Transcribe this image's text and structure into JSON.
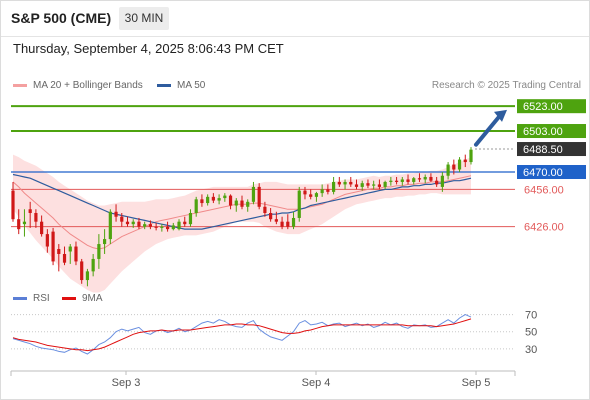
{
  "header": {
    "symbol": "S&P 500 (CME)",
    "timeframe": "30 MIN"
  },
  "datetime": "Thursday, September 4, 2025 8:06:43 PM CET",
  "copyright": "Research © 2025 Trading Central",
  "legend": {
    "price": [
      {
        "label": "MA 20 + Bollinger Bands",
        "color": "#f4a0a0"
      },
      {
        "label": "MA 50",
        "color": "#2e5c9e"
      }
    ],
    "rsi": [
      {
        "label": "RSI",
        "color": "#5b7fd6"
      },
      {
        "label": "9MA",
        "color": "#e01010"
      }
    ]
  },
  "chart_data": {
    "type": "candlestick",
    "price_axis_range": [
      6375,
      6532
    ],
    "current_price": 6488.5,
    "levels": [
      {
        "label": "6523.00",
        "value": 6523.0,
        "kind": "target",
        "color": "#4ea30f"
      },
      {
        "label": "6503.00",
        "value": 6503.0,
        "kind": "target",
        "color": "#4ea30f"
      },
      {
        "label": "6488.50",
        "value": 6488.5,
        "kind": "current",
        "color": "#333333"
      },
      {
        "label": "6470.00",
        "value": 6470.0,
        "kind": "pivot",
        "color": "#1f62c9"
      },
      {
        "label": "6456.00",
        "value": 6456.0,
        "kind": "support",
        "color": "#e25a5a"
      },
      {
        "label": "6426.00",
        "value": 6426.0,
        "kind": "support",
        "color": "#e25a5a"
      }
    ],
    "x_labels": [
      "Sep 3",
      "Sep 4",
      "Sep 5"
    ],
    "candles": [
      [
        6455,
        6462,
        6430,
        6432
      ],
      [
        6432,
        6440,
        6420,
        6424
      ],
      [
        6428,
        6440,
        6418,
        6430
      ],
      [
        6440,
        6446,
        6425,
        6437
      ],
      [
        6437,
        6440,
        6425,
        6430
      ],
      [
        6430,
        6435,
        6418,
        6420
      ],
      [
        6420,
        6424,
        6405,
        6410
      ],
      [
        6422,
        6425,
        6395,
        6398
      ],
      [
        6408,
        6412,
        6390,
        6404
      ],
      [
        6404,
        6410,
        6395,
        6397
      ],
      [
        6406,
        6412,
        6396,
        6410
      ],
      [
        6410,
        6414,
        6395,
        6398
      ],
      [
        6398,
        6400,
        6380,
        6383
      ],
      [
        6383,
        6392,
        6378,
        6390
      ],
      [
        6390,
        6404,
        6386,
        6400
      ],
      [
        6400,
        6420,
        6392,
        6412
      ],
      [
        6412,
        6424,
        6404,
        6416
      ],
      [
        6416,
        6440,
        6412,
        6438
      ],
      [
        6438,
        6444,
        6430,
        6434
      ],
      [
        6434,
        6437,
        6426,
        6430
      ],
      [
        6430,
        6434,
        6426,
        6428
      ],
      [
        6428,
        6432,
        6425,
        6430
      ],
      [
        6430,
        6433,
        6424,
        6426
      ],
      [
        6426,
        6430,
        6424,
        6428
      ],
      [
        6428,
        6431,
        6424,
        6426
      ],
      [
        6426,
        6429,
        6423,
        6425
      ],
      [
        6425,
        6428,
        6422,
        6426
      ],
      [
        6426,
        6430,
        6422,
        6424
      ],
      [
        6424,
        6429,
        6423,
        6427
      ],
      [
        6424,
        6432,
        6423,
        6430
      ],
      [
        6430,
        6434,
        6426,
        6428
      ],
      [
        6428,
        6440,
        6426,
        6437
      ],
      [
        6437,
        6450,
        6434,
        6448
      ],
      [
        6448,
        6452,
        6442,
        6445
      ],
      [
        6445,
        6452,
        6443,
        6450
      ],
      [
        6450,
        6453,
        6445,
        6447
      ],
      [
        6447,
        6452,
        6444,
        6449
      ],
      [
        6449,
        6453,
        6446,
        6451
      ],
      [
        6451,
        6452,
        6440,
        6443
      ],
      [
        6443,
        6449,
        6438,
        6447
      ],
      [
        6447,
        6451,
        6440,
        6442
      ],
      [
        6442,
        6448,
        6438,
        6446
      ],
      [
        6446,
        6462,
        6444,
        6458
      ],
      [
        6458,
        6461,
        6440,
        6442
      ],
      [
        6442,
        6446,
        6434,
        6437
      ],
      [
        6437,
        6441,
        6430,
        6432
      ],
      [
        6432,
        6438,
        6428,
        6430
      ],
      [
        6430,
        6434,
        6424,
        6426
      ],
      [
        6430,
        6436,
        6424,
        6426
      ],
      [
        6426,
        6438,
        6424,
        6433
      ],
      [
        6433,
        6458,
        6430,
        6455
      ],
      [
        6455,
        6458,
        6448,
        6452
      ],
      [
        6452,
        6456,
        6448,
        6450
      ],
      [
        6450,
        6454,
        6446,
        6453
      ],
      [
        6453,
        6460,
        6450,
        6456
      ],
      [
        6456,
        6460,
        6452,
        6454
      ],
      [
        6454,
        6466,
        6452,
        6462
      ],
      [
        6462,
        6466,
        6458,
        6460
      ],
      [
        6460,
        6464,
        6456,
        6462
      ],
      [
        6462,
        6466,
        6458,
        6460
      ],
      [
        6460,
        6464,
        6456,
        6458
      ],
      [
        6458,
        6463,
        6455,
        6461
      ],
      [
        6461,
        6464,
        6457,
        6459
      ],
      [
        6459,
        6463,
        6456,
        6460
      ],
      [
        6460,
        6464,
        6456,
        6458
      ],
      [
        6458,
        6463,
        6456,
        6462
      ],
      [
        6462,
        6466,
        6459,
        6463
      ],
      [
        6463,
        6466,
        6460,
        6462
      ],
      [
        6462,
        6466,
        6459,
        6464
      ],
      [
        6464,
        6468,
        6460,
        6462
      ],
      [
        6462,
        6466,
        6460,
        6465
      ],
      [
        6465,
        6469,
        6462,
        6464
      ],
      [
        6464,
        6468,
        6461,
        6466
      ],
      [
        6466,
        6469,
        6462,
        6463
      ],
      [
        6463,
        6466,
        6458,
        6460
      ],
      [
        6458,
        6470,
        6454,
        6467
      ],
      [
        6467,
        6478,
        6464,
        6476
      ],
      [
        6476,
        6480,
        6468,
        6472
      ],
      [
        6472,
        6482,
        6470,
        6480
      ],
      [
        6480,
        6484,
        6474,
        6478
      ],
      [
        6478,
        6490,
        6476,
        6488
      ]
    ],
    "ma50": [
      6468,
      6467,
      6466,
      6465,
      6463,
      6461,
      6459,
      6457,
      6455,
      6453,
      6451,
      6449,
      6447,
      6445,
      6443,
      6441,
      6439,
      6437,
      6436,
      6435,
      6434,
      6433,
      6432,
      6431,
      6430,
      6429,
      6428,
      6427,
      6426,
      6425,
      6424,
      6424,
      6424,
      6424,
      6425,
      6426,
      6427,
      6428,
      6429,
      6430,
      6431,
      6432,
      6433,
      6434,
      6435,
      6436,
      6436,
      6437,
      6437,
      6438,
      6440,
      6441,
      6443,
      6444,
      6445,
      6446,
      6447,
      6448,
      6449,
      6450,
      6451,
      6452,
      6453,
      6454,
      6455,
      6456,
      6456,
      6457,
      6458,
      6458,
      6459,
      6459,
      6460,
      6460,
      6461,
      6461,
      6462,
      6463,
      6463,
      6464,
      6465
    ],
    "ma20": [
      6462,
      6458,
      6453,
      6449,
      6445,
      6441,
      6437,
      6433,
      6428,
      6424,
      6420,
      6417,
      6414,
      6411,
      6409,
      6408,
      6409,
      6412,
      6415,
      6418,
      6420,
      6422,
      6424,
      6426,
      6428,
      6430,
      6431,
      6432,
      6433,
      6434,
      6435,
      6436,
      6437,
      6438,
      6439,
      6440,
      6441,
      6442,
      6443,
      6444,
      6444,
      6444,
      6445,
      6445,
      6444,
      6443,
      6442,
      6441,
      6440,
      6440,
      6440,
      6441,
      6442,
      6443,
      6444,
      6446,
      6448,
      6450,
      6452,
      6453,
      6454,
      6455,
      6456,
      6457,
      6457,
      6458,
      6458,
      6459,
      6459,
      6460,
      6460,
      6461,
      6461,
      6462,
      6462,
      6462,
      6463,
      6464,
      6465,
      6466,
      6467
    ],
    "bb_width": [
      22,
      24,
      26,
      28,
      30,
      31,
      32,
      33,
      34,
      35,
      36,
      36,
      36,
      36,
      36,
      35,
      34,
      32,
      30,
      28,
      26,
      24,
      22,
      20,
      19,
      18,
      17,
      16,
      16,
      16,
      16,
      17,
      18,
      18,
      18,
      18,
      17,
      16,
      15,
      14,
      14,
      14,
      15,
      16,
      18,
      19,
      20,
      20,
      20,
      20,
      20,
      19,
      18,
      17,
      16,
      15,
      14,
      13,
      12,
      11,
      10,
      10,
      10,
      10,
      9,
      9,
      9,
      9,
      9,
      9,
      9,
      9,
      9,
      9,
      9,
      10,
      11,
      12,
      13,
      14,
      15
    ],
    "target_arrow": {
      "from": 6492,
      "to": 6520
    },
    "rsi": {
      "ticks": [
        70,
        50,
        30
      ],
      "range": [
        10,
        80
      ],
      "rsi": [
        42,
        40,
        38,
        36,
        33,
        31,
        30,
        29,
        27,
        26,
        29,
        31,
        27,
        24,
        29,
        35,
        38,
        43,
        50,
        53,
        51,
        53,
        55,
        49,
        47,
        51,
        52,
        49,
        51,
        54,
        50,
        52,
        56,
        60,
        62,
        60,
        64,
        62,
        58,
        56,
        55,
        60,
        63,
        53,
        48,
        44,
        42,
        40,
        45,
        50,
        60,
        63,
        58,
        59,
        61,
        57,
        59,
        60,
        56,
        58,
        60,
        57,
        59,
        55,
        57,
        61,
        58,
        60,
        56,
        54,
        58,
        57,
        58,
        55,
        56,
        60,
        64,
        60,
        66,
        70,
        67
      ],
      "ma9": [
        43,
        41,
        40,
        39,
        38,
        36,
        34,
        33,
        32,
        31,
        30,
        29,
        29,
        28,
        29,
        30,
        32,
        35,
        38,
        41,
        44,
        47,
        49,
        50,
        51,
        51,
        52,
        51,
        51,
        52,
        52,
        52,
        53,
        54,
        55,
        56,
        57,
        58,
        58,
        59,
        59,
        58,
        58,
        57,
        55,
        53,
        51,
        49,
        48,
        48,
        49,
        51,
        52,
        54,
        56,
        57,
        58,
        58,
        58,
        58,
        58,
        58,
        58,
        58,
        58,
        58,
        58,
        58,
        58,
        57,
        57,
        57,
        57,
        57,
        56,
        57,
        58,
        59,
        61,
        63,
        65
      ]
    }
  }
}
